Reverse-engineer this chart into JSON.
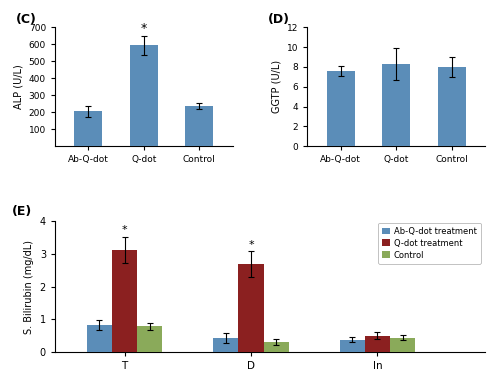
{
  "panel_C": {
    "title": "(C)",
    "ylabel": "ALP (U/L)",
    "categories": [
      "Ab-Q-dot",
      "Q-dot",
      "Control"
    ],
    "values": [
      205,
      595,
      238
    ],
    "errors": [
      30,
      55,
      18
    ],
    "ylim": [
      0,
      700
    ],
    "yticks": [
      100,
      200,
      300,
      400,
      500,
      600,
      700
    ],
    "bar_color": "#5b8db8",
    "significant": [
      false,
      true,
      false
    ]
  },
  "panel_D": {
    "title": "(D)",
    "ylabel": "GGTP (U/L)",
    "categories": [
      "Ab-Q-dot",
      "Q-dot",
      "Control"
    ],
    "values": [
      7.6,
      8.3,
      8.0
    ],
    "errors": [
      0.5,
      1.6,
      1.0
    ],
    "ylim": [
      0,
      12
    ],
    "yticks": [
      0,
      2,
      4,
      6,
      8,
      10,
      12
    ],
    "bar_color": "#5b8db8",
    "significant": [
      false,
      false,
      false
    ]
  },
  "panel_E": {
    "title": "(E)",
    "ylabel": "S. Bilirubin (mg/dL)",
    "categories": [
      "T",
      "D",
      "In"
    ],
    "groups": [
      "Ab-Q-dot treatment",
      "Q-dot treatment",
      "Control"
    ],
    "values": [
      [
        0.83,
        0.42,
        0.37
      ],
      [
        3.13,
        2.68,
        0.5
      ],
      [
        0.78,
        0.3,
        0.43
      ]
    ],
    "errors": [
      [
        0.15,
        0.15,
        0.08
      ],
      [
        0.4,
        0.4,
        0.12
      ],
      [
        0.1,
        0.1,
        0.08
      ]
    ],
    "ylim": [
      0,
      4
    ],
    "yticks": [
      0,
      1,
      2,
      3,
      4
    ],
    "bar_colors": [
      "#5b8db8",
      "#8b2020",
      "#8aaa5a"
    ],
    "significant": [
      [
        false,
        false,
        false
      ],
      [
        true,
        true,
        false
      ],
      [
        false,
        false,
        false
      ]
    ]
  },
  "background_color": "#ffffff"
}
